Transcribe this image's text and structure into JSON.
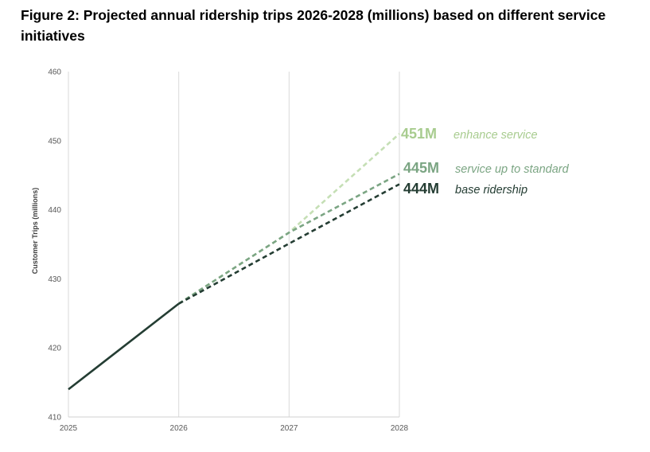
{
  "chart_data": {
    "type": "line",
    "title": "Figure 2: Projected annual ridership trips 2026-2028 (millions) based on different service initiatives",
    "xlabel": "",
    "ylabel": "Customer Trips (millions)",
    "x": [
      2025,
      2026,
      2027,
      2028
    ],
    "x_tick_labels": [
      "2025",
      "2026",
      "2027",
      "2028"
    ],
    "ylim": [
      410,
      460
    ],
    "y_ticks": [
      410,
      420,
      430,
      440,
      450,
      460
    ],
    "y_tick_labels": [
      "410",
      "420",
      "430",
      "440",
      "450",
      "460"
    ],
    "grid": "vertical",
    "actual": {
      "name": "actual",
      "x": [
        2025,
        2026
      ],
      "values": [
        414,
        426.4
      ],
      "color": "#243d33"
    },
    "series": [
      {
        "name": "enhance service",
        "x": [
          2026,
          2027,
          2028
        ],
        "values": [
          426.4,
          436.7,
          451
        ],
        "color": "#c5dfb5",
        "end_label": "451M",
        "label_color": "#a8cc8f"
      },
      {
        "name": "service up to standard",
        "x": [
          2026,
          2027,
          2028
        ],
        "values": [
          426.4,
          436.7,
          445.2
        ],
        "color": "#7ba583",
        "end_label": "445M",
        "label_color": "#7ba583"
      },
      {
        "name": "base ridership",
        "x": [
          2026,
          2027,
          2028
        ],
        "values": [
          426.4,
          435.1,
          443.7
        ],
        "color": "#243d33",
        "end_label": "444M",
        "label_color": "#243d33"
      }
    ]
  }
}
